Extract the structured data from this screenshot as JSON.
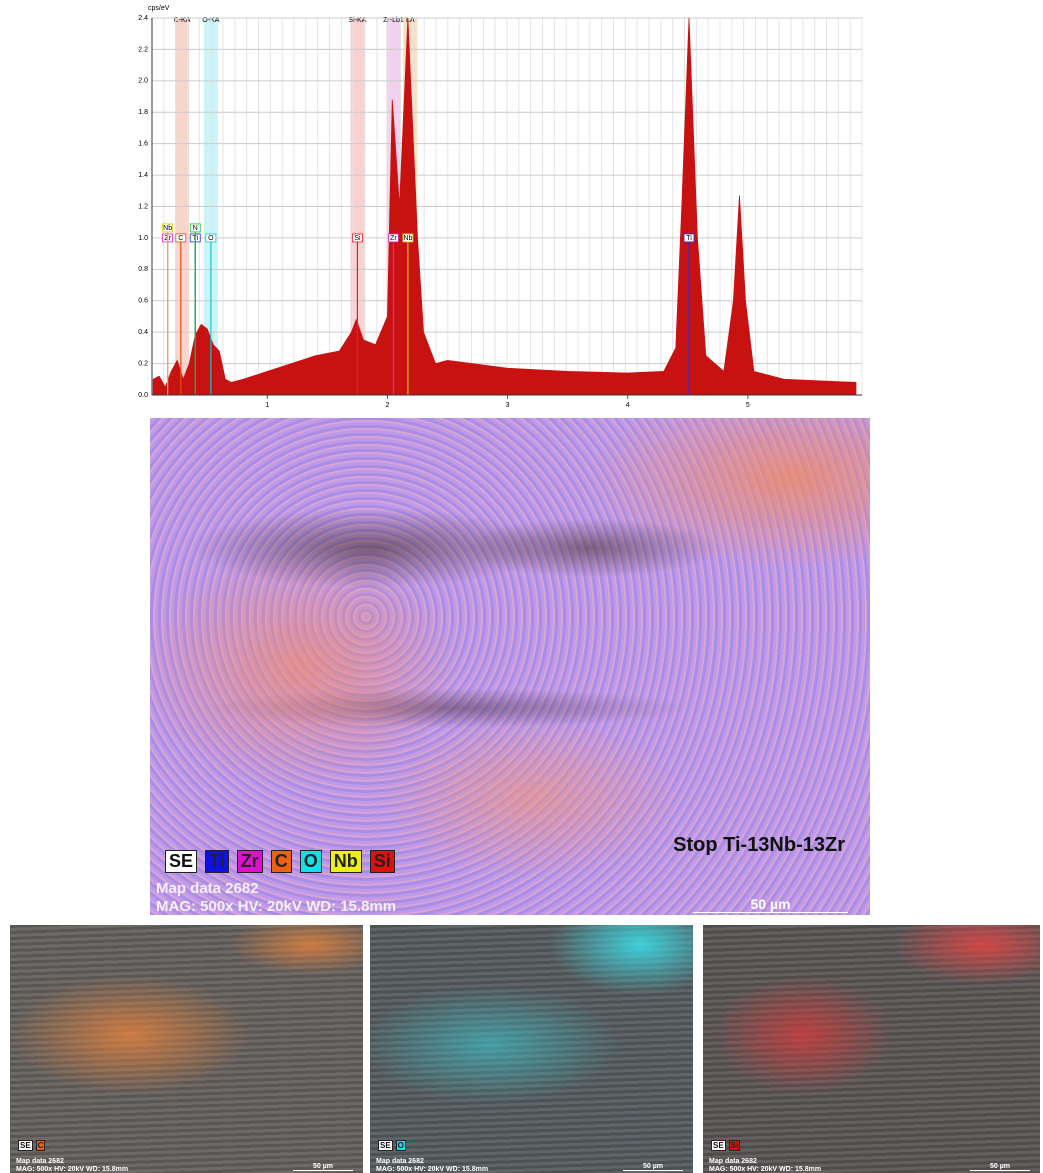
{
  "chart_data": {
    "type": "area",
    "y_label": "cps/eV",
    "color": "#c81212",
    "x": [
      0.05,
      0.1,
      0.15,
      0.2,
      0.25,
      0.3,
      0.35,
      0.4,
      0.45,
      0.5,
      0.55,
      0.6,
      0.65,
      0.7,
      0.8,
      1.0,
      1.2,
      1.4,
      1.6,
      1.7,
      1.74,
      1.8,
      1.9,
      2.0,
      2.04,
      2.1,
      2.17,
      2.25,
      2.3,
      2.4,
      2.5,
      2.7,
      3.0,
      3.5,
      4.0,
      4.3,
      4.4,
      4.45,
      4.51,
      4.58,
      4.65,
      4.8,
      4.88,
      4.93,
      4.98,
      5.05,
      5.3,
      5.6,
      5.9
    ],
    "values": [
      0.1,
      0.12,
      0.05,
      0.15,
      0.22,
      0.1,
      0.2,
      0.38,
      0.45,
      0.42,
      0.32,
      0.28,
      0.1,
      0.08,
      0.1,
      0.15,
      0.2,
      0.25,
      0.28,
      0.4,
      0.48,
      0.35,
      0.32,
      0.5,
      1.88,
      1.2,
      2.4,
      1.0,
      0.4,
      0.2,
      0.22,
      0.2,
      0.17,
      0.15,
      0.14,
      0.15,
      0.3,
      1.2,
      2.4,
      1.0,
      0.25,
      0.15,
      0.6,
      1.27,
      0.6,
      0.15,
      0.1,
      0.09,
      0.08
    ],
    "xlim": [
      0.04,
      5.95
    ],
    "ylim": [
      0,
      2.4
    ],
    "xticks": [
      1,
      2,
      3,
      4,
      5
    ],
    "yticks": [
      {
        "value": 0,
        "label": "0.0"
      },
      0.2,
      0.4,
      0.6,
      0.8,
      {
        "value": 1,
        "label": "1.0"
      },
      1.2,
      1.4,
      1.6,
      1.8,
      {
        "value": 2,
        "label": "2.0"
      },
      2.2,
      2.4
    ],
    "grid": true,
    "peak_bands": [
      {
        "label": "C-KA",
        "x": 0.29,
        "color": "#f6d6cc"
      },
      {
        "label": "O-KA",
        "x": 0.53,
        "color": "#ccf4f6"
      },
      {
        "label": "Si-KA",
        "x": 1.75,
        "color": "#f8d2d2"
      },
      {
        "label": "Zr-Lb1",
        "x": 2.05,
        "color": "#f4d0f0"
      },
      {
        "label": "LA",
        "x": 2.19,
        "color": "#f8e0c0"
      }
    ],
    "markers": [
      {
        "label": "Zr",
        "x": 0.17,
        "color": "#e020c0"
      },
      {
        "label": "Nb",
        "x": 0.17,
        "color": "#d8c800"
      },
      {
        "label": "C",
        "x": 0.28,
        "color": "#e05010"
      },
      {
        "label": "Ti",
        "x": 0.4,
        "color": "#2030e0"
      },
      {
        "label": "N",
        "x": 0.4,
        "color": "#20c020"
      },
      {
        "label": "O",
        "x": 0.53,
        "color": "#10c8d0"
      },
      {
        "label": "Si",
        "x": 1.75,
        "color": "#e02020"
      },
      {
        "label": "Zr",
        "x": 2.05,
        "color": "#e020c0"
      },
      {
        "label": "Nb",
        "x": 2.17,
        "color": "#d8c800"
      },
      {
        "label": "Ti",
        "x": 4.51,
        "color": "#2030e0"
      }
    ]
  },
  "map": {
    "legend": [
      {
        "label": "SE",
        "color": "#ffffff"
      },
      {
        "label": "Ti",
        "color": "#1010e0"
      },
      {
        "label": "Zr",
        "color": "#e010d0"
      },
      {
        "label": "C",
        "color": "#f06010"
      },
      {
        "label": "O",
        "color": "#10e0e8"
      },
      {
        "label": "Nb",
        "color": "#f0f010"
      },
      {
        "label": "Si",
        "color": "#e01010"
      }
    ],
    "title": "Stop Ti-13Nb-13Zr",
    "map_data": "Map data 2682",
    "info": "MAG: 500x HV: 20kV WD: 15.8mm",
    "scale": "50 µm"
  },
  "small_maps": [
    {
      "legend": [
        {
          "label": "SE",
          "color": "#ffffff"
        },
        {
          "label": "C",
          "color": "#f06010"
        }
      ],
      "map_data": "Map data 2682",
      "info": "MAG: 500x HV: 20kV WD: 15.8mm",
      "scale": "50 µm"
    },
    {
      "legend": [
        {
          "label": "SE",
          "color": "#ffffff"
        },
        {
          "label": "O",
          "color": "#10e0e8"
        }
      ],
      "map_data": "Map data 2682",
      "info": "MAG: 500x HV: 20kV WD: 15.8mm",
      "scale": "50 µm"
    },
    {
      "legend": [
        {
          "label": "SE",
          "color": "#ffffff"
        },
        {
          "label": "Si",
          "color": "#e01010"
        }
      ],
      "map_data": "Map data 2682",
      "info": "MAG: 500x HV: 20kV WD: 15.8mm",
      "scale": "50 µm"
    }
  ]
}
